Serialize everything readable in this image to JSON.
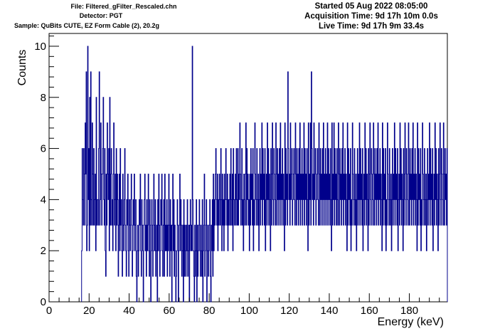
{
  "header": {
    "file_line": "File: Filtered_gFilter_Rescaled.chn",
    "detector_line": "Detector: PGT",
    "sample_line": "Sample: QuBits CUTE, EZ Form Cable (2), 20.2g",
    "started_line": "Started 05 Aug 2022 08:05:00",
    "acq_line": "Acquisition Time: 9d 17h 10m 0.0s",
    "live_line": "Live Time: 9d 17h 9m 33.4s"
  },
  "colors": {
    "histogram": "#00008b",
    "frame": "#000000",
    "background": "#ffffff"
  },
  "chart_data": {
    "type": "histogram",
    "xlabel": "Energy (keV)",
    "ylabel": "Counts",
    "xlim": [
      0,
      199
    ],
    "ylim": [
      0,
      10.5
    ],
    "x_major_ticks": [
      0,
      20,
      40,
      60,
      80,
      100,
      120,
      140,
      160,
      180
    ],
    "x_tick_labels": [
      "0",
      "20",
      "40",
      "60",
      "80",
      "100",
      "120",
      "140",
      "160",
      "180"
    ],
    "y_major_ticks": [
      0,
      2,
      4,
      6,
      8,
      10
    ],
    "y_tick_labels": [
      "0",
      "2",
      "4",
      "6",
      "8",
      "10"
    ],
    "grid": false,
    "legend": "none",
    "bin_start": 16.25,
    "bin_width": 0.25,
    "counts": [
      2,
      6,
      4,
      3,
      6,
      5,
      3,
      7,
      5,
      9,
      2,
      3,
      10,
      4,
      6,
      2,
      8,
      3,
      9,
      4,
      3,
      7,
      5,
      3,
      6,
      3,
      4,
      5,
      2,
      8,
      3,
      4,
      4,
      3,
      6,
      9,
      3,
      4,
      7,
      5,
      3,
      5,
      6,
      8,
      4,
      3,
      6,
      2,
      1,
      5,
      3,
      7,
      5,
      4,
      6,
      2,
      8,
      3,
      5,
      6,
      3,
      4,
      2,
      5,
      7,
      3,
      4,
      5,
      2,
      6,
      3,
      5,
      4,
      1,
      3,
      5,
      2,
      6,
      3,
      4,
      2,
      1,
      5,
      3,
      2,
      4,
      6,
      3,
      2,
      1,
      4,
      3,
      5,
      2,
      1,
      4,
      3,
      2,
      4,
      5,
      3,
      1,
      2,
      4,
      3,
      5,
      2,
      3,
      4,
      1,
      0,
      2,
      3,
      1,
      2,
      4,
      3,
      5,
      2,
      1,
      4,
      3,
      2,
      0,
      3,
      4,
      5,
      2,
      3,
      1,
      4,
      2,
      3,
      5,
      2,
      1,
      4,
      3,
      0,
      2,
      4,
      3,
      1,
      2,
      5,
      3,
      2,
      4,
      1,
      2,
      3,
      0,
      4,
      2,
      5,
      3,
      1,
      2,
      4,
      3,
      5,
      2,
      1,
      3,
      4,
      1,
      5,
      2,
      3,
      2,
      4,
      1,
      3,
      2,
      5,
      3,
      1,
      4,
      2,
      3,
      0,
      3,
      5,
      2,
      4,
      1,
      3,
      2,
      0,
      1,
      2,
      4,
      3,
      0,
      2,
      3,
      5,
      2,
      4,
      3,
      1,
      2,
      3,
      0,
      4,
      1,
      3,
      2,
      1,
      3,
      2,
      4,
      1,
      2,
      3,
      0,
      3,
      4,
      2,
      3,
      2,
      10,
      4,
      2,
      1,
      0,
      3,
      1,
      2,
      4,
      0,
      3,
      1,
      2,
      3,
      4,
      2,
      1,
      3,
      2,
      1,
      4,
      0,
      2,
      3,
      5,
      1,
      2,
      3,
      4,
      0,
      2,
      3,
      1,
      2,
      3,
      4,
      1,
      0,
      3,
      2,
      4,
      1,
      5,
      2,
      4,
      3,
      5,
      6,
      4,
      3,
      5,
      2,
      4,
      3,
      5,
      4,
      3,
      6,
      4,
      2,
      5,
      3,
      4,
      2,
      5,
      3,
      4,
      6,
      4,
      3,
      5,
      2,
      4,
      3,
      4,
      5,
      3,
      6,
      4,
      3,
      5,
      2,
      6,
      4,
      3,
      4,
      5,
      3,
      6,
      4,
      3,
      6,
      3,
      5,
      4,
      7,
      5,
      3,
      4,
      6,
      3,
      4,
      2,
      5,
      4,
      3,
      5,
      7,
      3,
      6,
      4,
      5,
      3,
      4,
      2,
      5,
      3,
      6,
      4,
      5,
      3,
      6,
      2,
      4,
      3,
      7,
      5,
      4,
      3,
      6,
      4,
      3,
      5,
      2,
      4,
      6,
      3,
      5,
      4,
      7,
      3,
      6,
      4,
      5,
      3,
      6,
      2,
      4,
      5,
      3,
      7,
      4,
      6,
      3,
      5,
      4,
      2,
      6,
      3,
      5,
      7,
      4,
      3,
      6,
      5,
      4,
      3,
      7,
      5,
      3,
      6,
      4,
      5,
      3,
      6,
      4,
      7,
      3,
      5,
      4,
      6,
      3,
      5,
      4,
      2,
      7,
      3,
      6,
      4,
      5,
      3,
      9,
      6,
      4,
      5,
      3,
      7,
      4,
      5,
      6,
      3,
      4,
      5,
      6,
      4,
      3,
      7,
      5,
      3,
      6,
      4,
      5,
      3,
      6,
      4,
      7,
      3,
      5,
      4,
      6,
      3,
      5,
      4,
      7,
      3,
      6,
      4,
      5,
      3,
      6,
      4,
      2,
      7,
      3,
      5,
      4,
      7,
      3,
      9,
      6,
      4,
      5,
      3,
      7,
      4,
      5,
      6,
      3,
      4,
      5,
      6,
      4,
      3,
      7,
      5,
      3,
      6,
      4,
      5,
      3,
      6,
      4,
      7,
      3,
      5,
      4,
      6,
      3,
      5,
      4,
      7,
      3,
      6,
      4,
      5,
      3,
      6,
      4,
      2,
      7,
      3,
      5,
      4,
      7,
      3,
      6,
      4,
      5,
      3,
      6,
      4,
      3,
      7,
      5,
      3,
      6,
      4,
      5,
      3,
      6,
      4,
      7,
      3,
      5,
      4,
      6,
      3,
      5,
      4,
      2,
      7,
      3,
      6,
      4,
      5,
      3,
      6,
      2,
      4,
      3,
      7,
      5,
      4,
      3,
      6,
      4,
      3,
      5,
      2,
      4,
      6,
      3,
      5,
      4,
      7,
      3,
      6,
      4,
      5,
      3,
      6,
      2,
      4,
      5,
      3,
      7,
      4,
      6,
      3,
      5,
      4,
      2,
      6,
      3,
      5,
      7,
      4,
      3,
      6,
      5,
      4,
      3,
      7,
      5,
      3,
      6,
      4,
      5,
      3,
      6,
      4,
      7,
      3,
      5,
      4,
      6,
      3,
      5,
      4,
      2,
      7,
      3,
      6,
      4,
      5,
      3,
      6,
      2,
      4,
      3,
      7,
      5,
      4,
      3,
      6,
      4,
      3,
      5,
      2,
      4,
      6,
      3,
      5,
      4,
      7,
      3,
      6,
      4,
      5,
      3,
      6,
      2,
      4,
      5,
      3,
      7,
      4,
      6,
      3,
      5,
      4,
      2,
      6,
      3,
      5,
      7,
      4,
      3,
      6,
      5,
      4,
      3,
      7,
      5,
      3,
      6,
      4,
      5,
      3,
      6,
      4,
      7,
      3,
      5,
      4,
      6,
      3,
      5,
      4,
      2,
      7,
      3,
      6,
      4,
      5,
      3,
      6,
      2,
      4,
      3,
      7,
      5,
      4,
      3,
      6,
      4,
      3,
      5,
      2,
      4,
      6,
      3,
      5,
      4,
      7,
      3,
      6,
      4,
      5,
      3,
      6,
      2,
      4,
      5,
      3,
      7,
      4,
      6,
      3,
      5,
      4,
      2,
      6,
      3,
      5,
      7,
      4,
      3,
      6,
      5,
      4,
      3,
      7,
      5,
      3,
      6,
      4,
      5,
      3,
      6,
      4,
      7,
      3,
      5
    ]
  }
}
